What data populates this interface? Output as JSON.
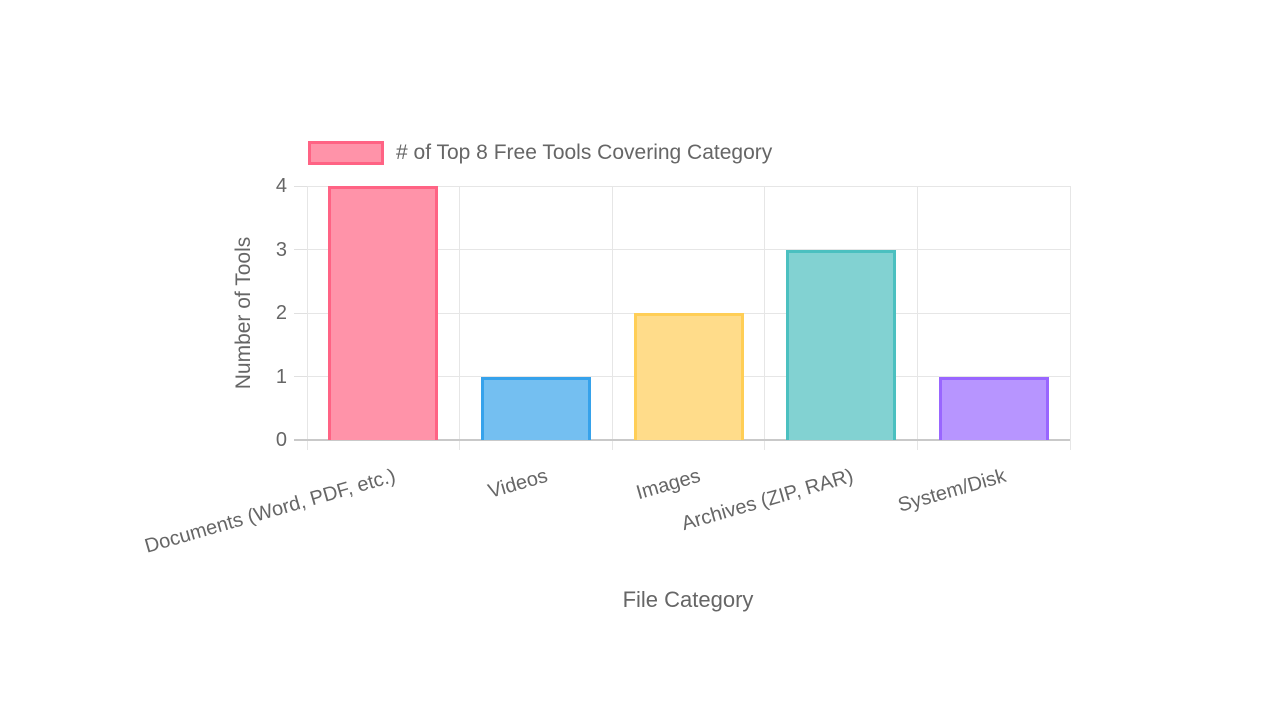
{
  "chart_data": {
    "type": "bar",
    "legend_label": "# of Top 8 Free Tools Covering Category",
    "legend_position": "top",
    "categories": [
      "Documents (Word, PDF, etc.)",
      "Videos",
      "Images",
      "Archives (ZIP, RAR)",
      "System/Disk"
    ],
    "values": [
      4,
      1,
      2,
      3,
      1
    ],
    "xlabel": "File Category",
    "ylabel": "Number of Tools",
    "ylim": [
      0,
      4
    ],
    "yticks": [
      0,
      1,
      2,
      3,
      4
    ],
    "grid": true,
    "bar_fill_colors": [
      "#FF93A9",
      "#74BFF1",
      "#FFDC8A",
      "#82D2D2",
      "#B795FF"
    ],
    "bar_border_colors": [
      "#FF6384",
      "#36A2EB",
      "#FFCE56",
      "#4BC0C0",
      "#9966FF"
    ],
    "colors": {
      "text": "#666666",
      "gridline": "#e6e6e6",
      "axis_line": "#c9c9c9"
    }
  }
}
